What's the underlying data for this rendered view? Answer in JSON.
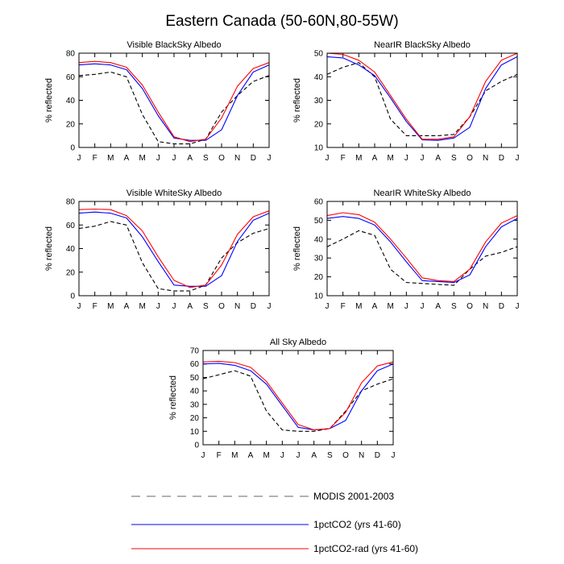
{
  "title": "Eastern Canada (50-60N,80-55W)",
  "legend": [
    {
      "label": "MODIS 2001-2003",
      "color": "#000000",
      "dash": true
    },
    {
      "label": "1pctCO2 (yrs 41-60)",
      "color": "#0000ff",
      "dash": false
    },
    {
      "label": "1pctCO2-rad (yrs 41-60)",
      "color": "#ff0000",
      "dash": false
    }
  ],
  "chart_data": [
    {
      "type": "line",
      "title": "Visible BlackSky Albedo",
      "ylabel": "% reflected",
      "categories": [
        "J",
        "F",
        "M",
        "A",
        "M",
        "J",
        "J",
        "A",
        "S",
        "O",
        "N",
        "D",
        "J"
      ],
      "ylim": [
        0,
        80
      ],
      "yticks": [
        0,
        20,
        40,
        60,
        80
      ],
      "grid": false,
      "series": [
        {
          "name": "MODIS 2001-2003",
          "color": "#000000",
          "dash": true,
          "values": [
            61,
            62,
            64,
            60,
            28,
            5,
            3,
            3,
            7,
            30,
            44,
            56,
            61
          ]
        },
        {
          "name": "1pctCO2 (yrs 41-60)",
          "color": "#0000ff",
          "dash": false,
          "values": [
            70,
            71,
            70,
            66,
            50,
            27,
            8,
            6,
            6,
            15,
            44,
            64,
            70
          ]
        },
        {
          "name": "1pctCO2-rad (yrs 41-60)",
          "color": "#ff0000",
          "dash": false,
          "values": [
            72,
            73,
            72,
            68,
            53,
            30,
            9,
            5,
            7,
            25,
            52,
            67,
            72
          ]
        }
      ]
    },
    {
      "type": "line",
      "title": "NearIR BlackSky Albedo",
      "ylabel": "% reflected",
      "categories": [
        "J",
        "F",
        "M",
        "A",
        "M",
        "J",
        "J",
        "A",
        "S",
        "O",
        "N",
        "D",
        "J"
      ],
      "ylim": [
        10,
        50
      ],
      "yticks": [
        10,
        20,
        30,
        40,
        50
      ],
      "grid": false,
      "series": [
        {
          "name": "MODIS 2001-2003",
          "color": "#000000",
          "dash": true,
          "values": [
            41,
            44,
            46,
            40,
            22,
            15,
            15,
            15,
            15.5,
            23,
            34,
            38,
            41
          ]
        },
        {
          "name": "1pctCO2 (yrs 41-60)",
          "color": "#0000ff",
          "dash": false,
          "values": [
            48.5,
            48,
            45,
            40.5,
            31,
            21,
            13.2,
            13,
            14,
            18.5,
            35,
            45,
            48.5
          ]
        },
        {
          "name": "1pctCO2-rad (yrs 41-60)",
          "color": "#ff0000",
          "dash": false,
          "values": [
            50,
            49.5,
            47,
            42,
            32,
            22,
            13.5,
            13.5,
            14.5,
            23,
            38,
            47,
            50
          ]
        }
      ]
    },
    {
      "type": "line",
      "title": "Visible WhiteSky Albedo",
      "ylabel": "% reflected",
      "categories": [
        "J",
        "F",
        "M",
        "A",
        "M",
        "J",
        "J",
        "A",
        "S",
        "O",
        "N",
        "D",
        "J"
      ],
      "ylim": [
        0,
        80
      ],
      "yticks": [
        0,
        20,
        40,
        60,
        80
      ],
      "grid": false,
      "series": [
        {
          "name": "MODIS 2001-2003",
          "color": "#000000",
          "dash": true,
          "values": [
            57,
            59,
            63,
            60,
            28,
            6,
            4,
            4,
            9,
            32,
            45,
            53,
            57
          ]
        },
        {
          "name": "1pctCO2 (yrs 41-60)",
          "color": "#0000ff",
          "dash": false,
          "values": [
            70,
            71,
            70,
            66,
            50,
            29,
            9,
            8,
            8,
            17,
            46,
            64,
            70
          ]
        },
        {
          "name": "1pctCO2-rad (yrs 41-60)",
          "color": "#ff0000",
          "dash": false,
          "values": [
            73,
            73.5,
            73,
            68,
            55,
            33,
            13,
            7,
            9,
            26,
            52,
            67,
            72
          ]
        }
      ]
    },
    {
      "type": "line",
      "title": "NearIR WhiteSky Albedo",
      "ylabel": "% reflected",
      "categories": [
        "J",
        "F",
        "M",
        "A",
        "M",
        "J",
        "J",
        "A",
        "S",
        "O",
        "N",
        "D",
        "J"
      ],
      "ylim": [
        10,
        60
      ],
      "yticks": [
        10,
        20,
        30,
        40,
        50,
        60
      ],
      "grid": false,
      "series": [
        {
          "name": "MODIS 2001-2003",
          "color": "#000000",
          "dash": true,
          "values": [
            36,
            40,
            44.5,
            42,
            24,
            17,
            16.5,
            16,
            15.5,
            24,
            31,
            33,
            36
          ]
        },
        {
          "name": "1pctCO2 (yrs 41-60)",
          "color": "#0000ff",
          "dash": false,
          "values": [
            51,
            52,
            51,
            47.5,
            38.5,
            28,
            18,
            17.5,
            17,
            21,
            36,
            46.5,
            51
          ]
        },
        {
          "name": "1pctCO2-rad (yrs 41-60)",
          "color": "#ff0000",
          "dash": false,
          "values": [
            52.5,
            54,
            53,
            49,
            40,
            30,
            19.5,
            18,
            17.5,
            24,
            38.5,
            48.5,
            52.5
          ]
        }
      ]
    },
    {
      "type": "line",
      "title": "All Sky Albedo",
      "ylabel": "% reflected",
      "categories": [
        "J",
        "F",
        "M",
        "A",
        "M",
        "J",
        "J",
        "A",
        "S",
        "O",
        "N",
        "D",
        "J"
      ],
      "ylim": [
        0,
        70
      ],
      "yticks": [
        0,
        10,
        20,
        30,
        40,
        50,
        60,
        70
      ],
      "grid": false,
      "series": [
        {
          "name": "MODIS 2001-2003",
          "color": "#000000",
          "dash": true,
          "values": [
            49,
            52,
            55,
            51,
            25,
            11,
            10,
            10,
            12,
            25,
            40,
            45,
            49
          ]
        },
        {
          "name": "1pctCO2 (yrs 41-60)",
          "color": "#0000ff",
          "dash": false,
          "values": [
            60,
            60.5,
            59,
            55,
            45,
            29,
            13,
            11,
            12,
            18,
            40,
            55,
            60
          ]
        },
        {
          "name": "1pctCO2-rad (yrs 41-60)",
          "color": "#ff0000",
          "dash": false,
          "values": [
            61.5,
            62,
            61,
            57.5,
            47,
            31,
            15,
            11,
            12,
            24,
            46,
            58.5,
            61.5
          ]
        }
      ]
    }
  ]
}
